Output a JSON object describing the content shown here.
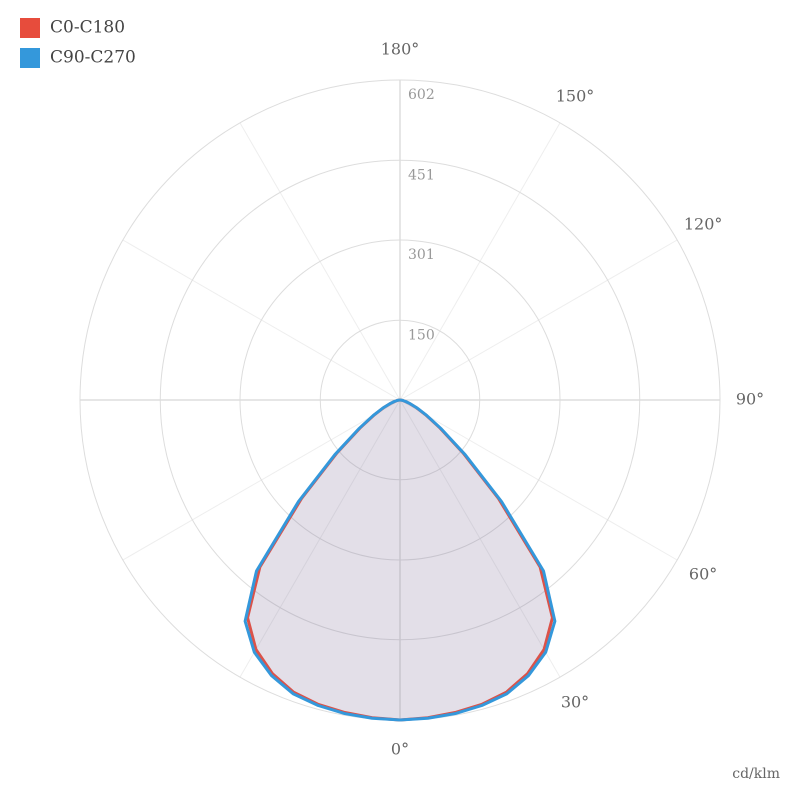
{
  "chart_data": {
    "type": "polar",
    "unit": "cd/klm",
    "angles": [
      0,
      5,
      10,
      15,
      20,
      25,
      30,
      35,
      40,
      45,
      50,
      55,
      60,
      65,
      70,
      75,
      80,
      85,
      90
    ],
    "series": [
      {
        "name": "C0-C180",
        "color": "#e74c3c",
        "values": [
          602,
          600,
          597,
          593,
          585,
          568,
          542,
          500,
          410,
          262,
          155,
          92,
          56,
          34,
          19,
          10,
          5,
          2,
          0
        ]
      },
      {
        "name": "C90-C270",
        "color": "#3498db",
        "values": [
          602,
          601,
          599,
          595,
          588,
          572,
          548,
          508,
          420,
          270,
          160,
          95,
          58,
          35,
          20,
          11,
          5,
          2,
          0
        ]
      }
    ],
    "rlim": [
      0,
      602
    ],
    "rticks": [
      150,
      301,
      451,
      602
    ],
    "angle_ticks": [
      {
        "value": 0,
        "label": "0°"
      },
      {
        "value": 30,
        "label": "30°"
      },
      {
        "value": 60,
        "label": "60°"
      },
      {
        "value": 90,
        "label": "90°"
      },
      {
        "value": 120,
        "label": "120°"
      },
      {
        "value": 150,
        "label": "150°"
      },
      {
        "value": 180,
        "label": "180°"
      }
    ],
    "legend": "top-left",
    "grid": true
  }
}
